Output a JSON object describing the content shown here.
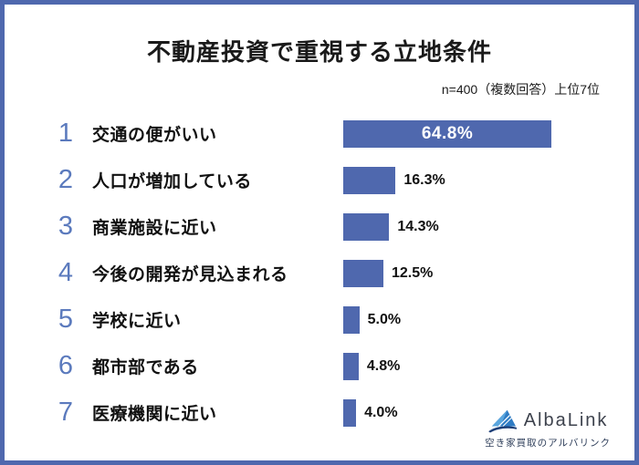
{
  "header": {
    "title": "不動産投資で重視する立地条件",
    "note": "n=400（複数回答）上位7位"
  },
  "chart_data": {
    "type": "bar",
    "orientation": "horizontal",
    "title": "不動産投資で重視する立地条件",
    "note": "n=400（複数回答）上位7位",
    "ranks": [
      "1",
      "2",
      "3",
      "4",
      "5",
      "6",
      "7"
    ],
    "categories": [
      "交通の便がいい",
      "人口が増加している",
      "商業施設に近い",
      "今後の開発が見込まれる",
      "学校に近い",
      "都市部である",
      "医療機関に近い"
    ],
    "values": [
      64.8,
      16.3,
      14.3,
      12.5,
      5.0,
      4.8,
      4.0
    ],
    "value_labels": [
      "64.8%",
      "16.3%",
      "14.3%",
      "12.5%",
      "5.0%",
      "4.8%",
      "4.0%"
    ],
    "xlim": [
      0,
      70
    ],
    "grid": false,
    "legend": false
  },
  "footer": {
    "logo_text": "AlbaLink",
    "tagline": "空き家買取のアルバリンク"
  },
  "colors": {
    "bar": "#4f68ae",
    "frame_border": "#4f68ae",
    "rank_number": "#5b7abd",
    "bar_label_inside": "#ffffff",
    "text": "#1a1a1a",
    "logo_text": "#3d424d",
    "logo_tagline": "#2d3d59"
  }
}
